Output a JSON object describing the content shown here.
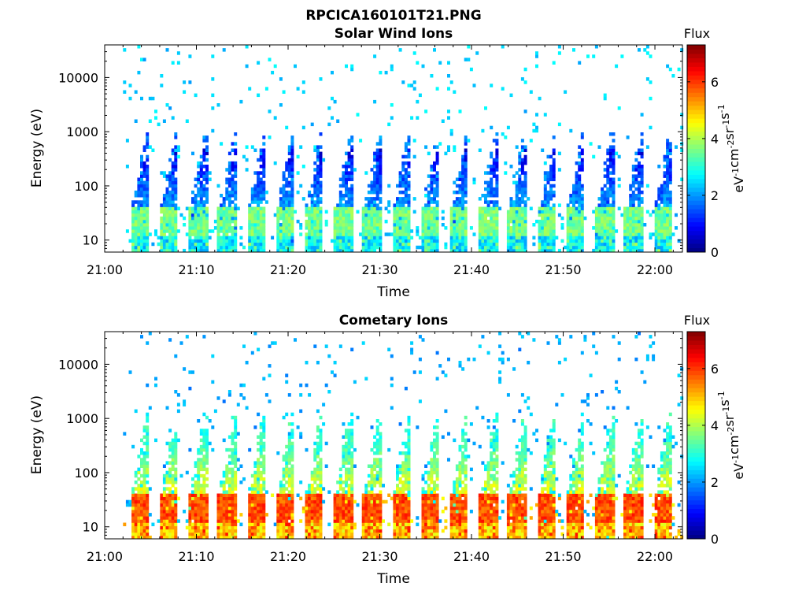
{
  "figure_title": "RPCICA160101T21.PNG",
  "colorbar": {
    "title": "Flux",
    "label": "eV⁻¹cm⁻²sr⁻¹s⁻¹",
    "label_parts": [
      "eV",
      "-1",
      "cm",
      "-2",
      "sr",
      "-1",
      "s",
      "-1"
    ],
    "range": [
      0,
      7.3
    ],
    "ticks": [
      0,
      2,
      4,
      6
    ],
    "tick_labels": [
      "0",
      "2",
      "4",
      "6"
    ],
    "colormap": "jet"
  },
  "chart_data": [
    {
      "type": "heatmap",
      "title": "Solar Wind Ions",
      "xlabel": "Time",
      "ylabel": "Energy (eV)",
      "y_scale": "log",
      "xlim": [
        "21:00",
        "22:03"
      ],
      "ylim": [
        6,
        40000
      ],
      "x_ticks": [
        "21:00",
        "21:10",
        "21:20",
        "21:30",
        "21:40",
        "21:50",
        "22:00"
      ],
      "y_ticks": [
        10,
        100,
        1000,
        10000
      ],
      "y_tick_labels": [
        "10",
        "100",
        "1000",
        "10000"
      ],
      "data_start": "21:02",
      "sweep_peaks": [
        "21:03:40",
        "21:06:50",
        "21:10:00",
        "21:13:10",
        "21:16:20",
        "21:19:30",
        "21:22:40",
        "21:25:50",
        "21:29:00",
        "21:32:10",
        "21:35:20",
        "21:38:30",
        "21:41:40",
        "21:44:50",
        "21:48:00",
        "21:51:10",
        "21:54:20",
        "21:57:30",
        "22:00:40"
      ],
      "core_energy_ev": [
        10,
        40
      ],
      "core_flux": 4.0,
      "peak_energy_ev": [
        300,
        800
      ],
      "peak_flux": 1.5,
      "background_flux": 2.8
    },
    {
      "type": "heatmap",
      "title": "Cometary Ions",
      "xlabel": "Time",
      "ylabel": "Energy (eV)",
      "y_scale": "log",
      "xlim": [
        "21:00",
        "22:03"
      ],
      "ylim": [
        6,
        40000
      ],
      "x_ticks": [
        "21:00",
        "21:10",
        "21:20",
        "21:30",
        "21:40",
        "21:50",
        "22:00"
      ],
      "y_ticks": [
        10,
        100,
        1000,
        10000
      ],
      "y_tick_labels": [
        "10",
        "100",
        "1000",
        "10000"
      ],
      "data_start": "21:02",
      "sweep_peaks": [
        "21:03:40",
        "21:06:50",
        "21:10:00",
        "21:13:10",
        "21:16:20",
        "21:19:30",
        "21:22:40",
        "21:25:50",
        "21:29:00",
        "21:32:10",
        "21:35:20",
        "21:38:30",
        "21:41:40",
        "21:44:50",
        "21:48:00",
        "21:51:10",
        "21:54:20",
        "21:57:30",
        "22:00:40"
      ],
      "core_energy_ev": [
        10,
        40
      ],
      "core_flux": 6.3,
      "peak_energy_ev": [
        300,
        1500
      ],
      "peak_flux": 2.8,
      "background_flux": 2.5
    }
  ]
}
